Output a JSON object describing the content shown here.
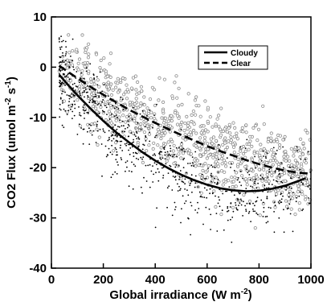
{
  "chart_data": {
    "type": "scatter",
    "title": "",
    "xlabel_main": "Global irradiance (W m",
    "xlabel_sup": "-2",
    "xlabel_end": ")",
    "ylabel_main": "CO2 Flux (umol m",
    "ylabel_sup1": "-2",
    "ylabel_mid": " s",
    "ylabel_sup2": "-1",
    "ylabel_end": ")",
    "xlim": [
      0,
      1000
    ],
    "ylim": [
      -40,
      10
    ],
    "x_ticks": [
      0,
      200,
      400,
      600,
      800,
      1000
    ],
    "y_ticks": [
      10,
      0,
      -10,
      -20,
      -30,
      -40
    ],
    "grid": false,
    "legend_position": "top-right",
    "series": [
      {
        "name": "Cloudy",
        "style": "solid",
        "color": "#000000",
        "x": [
          30,
          60,
          100,
          150,
          200,
          250,
          300,
          350,
          400,
          450,
          500,
          550,
          600,
          650,
          700,
          750,
          800,
          850,
          900,
          950,
          980
        ],
        "y": [
          -1.5,
          -3.3,
          -5.6,
          -8.2,
          -10.7,
          -13.0,
          -15.0,
          -16.9,
          -18.6,
          -20.1,
          -21.4,
          -22.5,
          -23.4,
          -24.1,
          -24.5,
          -24.7,
          -24.6,
          -24.2,
          -23.6,
          -22.7,
          -22.1
        ]
      },
      {
        "name": "Clear",
        "style": "dashed",
        "color": "#000000",
        "x": [
          30,
          60,
          100,
          150,
          200,
          250,
          300,
          350,
          400,
          450,
          500,
          550,
          600,
          650,
          700,
          750,
          800,
          850,
          900,
          950,
          1000
        ],
        "y": [
          0.3,
          -0.8,
          -2.2,
          -3.9,
          -5.5,
          -7.0,
          -8.5,
          -9.8,
          -11.1,
          -12.3,
          -13.5,
          -14.6,
          -15.7,
          -16.7,
          -17.6,
          -18.5,
          -19.3,
          -20.0,
          -20.6,
          -21.0,
          -21.2
        ]
      }
    ],
    "scatter_groups": [
      {
        "group": "clear-open-circles",
        "marker": "open-circle",
        "color": "#8a8a8a",
        "count": 900,
        "x_range": [
          30,
          1000
        ],
        "y_spread": 5
      },
      {
        "group": "cloudy-dots",
        "marker": "dot",
        "color": "#000000",
        "count": 800,
        "x_range": [
          30,
          1000
        ],
        "y_spread": 5
      }
    ]
  }
}
